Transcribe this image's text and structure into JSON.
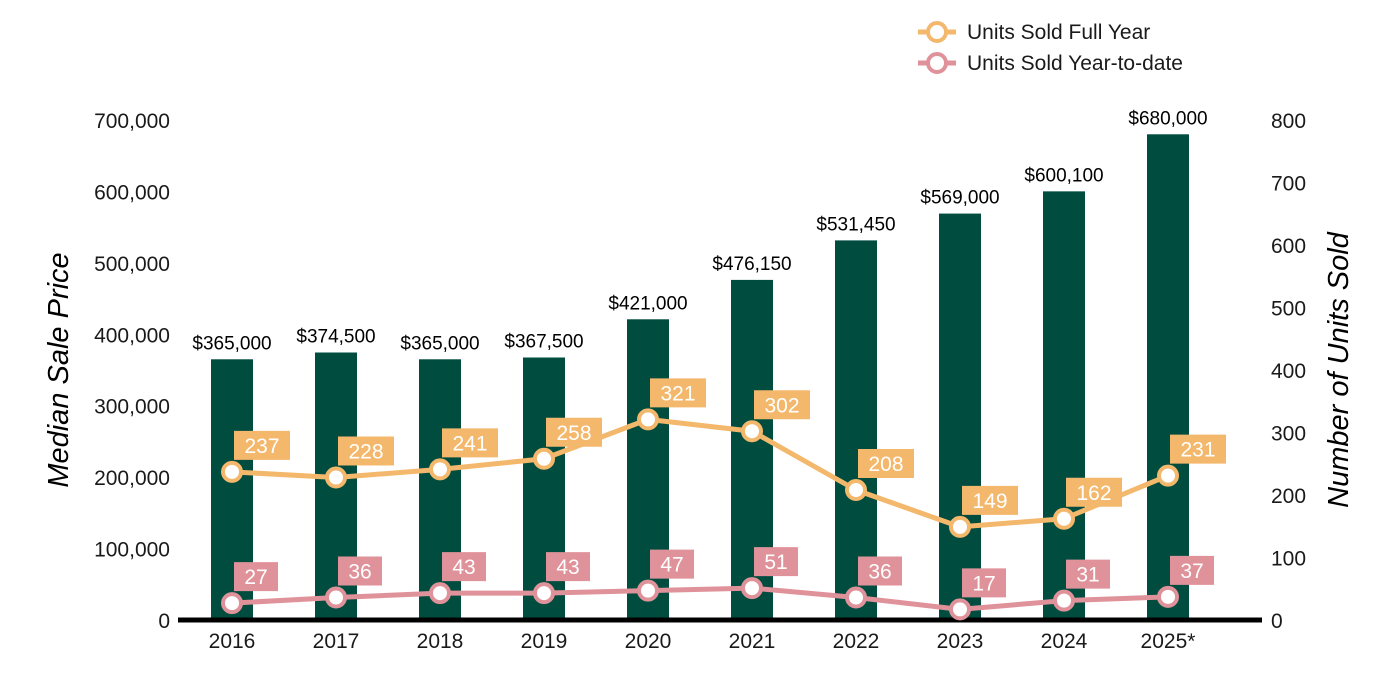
{
  "chart_data": {
    "type": "bar",
    "categories": [
      "2016",
      "2017",
      "2018",
      "2019",
      "2020",
      "2021",
      "2022",
      "2023",
      "2024",
      "2025*"
    ],
    "bar_series": {
      "name": "",
      "axis": "left",
      "values": [
        365000,
        374500,
        365000,
        367500,
        421000,
        476150,
        531450,
        569000,
        600100,
        680000
      ],
      "labels": [
        "$365,000",
        "$374,500",
        "$365,000",
        "$367,500",
        "$421,000",
        "$476,150",
        "$531,450",
        "$569,000",
        "$600,100",
        "$680,000"
      ],
      "color": "#004d40"
    },
    "line_series": [
      {
        "name": "Units Sold Full Year",
        "axis": "right",
        "values": [
          237,
          228,
          241,
          258,
          321,
          302,
          208,
          149,
          162,
          231
        ],
        "color": "#f4b86c"
      },
      {
        "name": "Units Sold Year-to-date",
        "axis": "right",
        "values": [
          27,
          36,
          43,
          43,
          47,
          51,
          36,
          17,
          31,
          37
        ],
        "color": "#e0929a"
      }
    ],
    "ylabel": "Median Sale Price",
    "y2label": "Number of Units Sold",
    "ylim": [
      0,
      700000
    ],
    "y2lim": [
      0,
      800
    ],
    "yticks": [
      "0",
      "100,000",
      "200,000",
      "300,000",
      "400,000",
      "500,000",
      "600,000",
      "700,000"
    ],
    "y2ticks": [
      "0",
      "100",
      "200",
      "300",
      "400",
      "500",
      "600",
      "700",
      "800"
    ],
    "legend": "top-right",
    "grid": false
  }
}
